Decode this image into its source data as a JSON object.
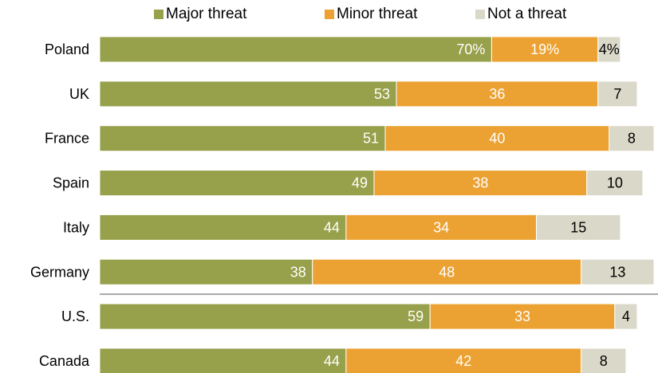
{
  "chart_data": {
    "type": "bar",
    "orientation": "horizontal",
    "stacked": true,
    "legend_position": "top",
    "categories": [
      "Poland",
      "UK",
      "France",
      "Spain",
      "Italy",
      "Germany",
      "U.S.",
      "Canada"
    ],
    "series": [
      {
        "name": "Major threat",
        "color": "#97a04a",
        "values": [
          70,
          53,
          51,
          49,
          44,
          38,
          59,
          44
        ],
        "labels": [
          "70%",
          "53",
          "51",
          "49",
          "44",
          "38",
          "59",
          "44"
        ]
      },
      {
        "name": "Minor threat",
        "color": "#eca232",
        "values": [
          19,
          36,
          40,
          38,
          34,
          48,
          33,
          42
        ],
        "labels": [
          "19%",
          "36",
          "40",
          "38",
          "34",
          "48",
          "33",
          "42"
        ]
      },
      {
        "name": "Not a threat",
        "color": "#dad8c8",
        "values": [
          4,
          7,
          8,
          10,
          15,
          13,
          4,
          8
        ],
        "labels": [
          "4%",
          "7",
          "8",
          "10",
          "15",
          "13",
          "4",
          "8"
        ]
      }
    ],
    "xlim": [
      0,
      100
    ],
    "separator_after": "Germany"
  }
}
